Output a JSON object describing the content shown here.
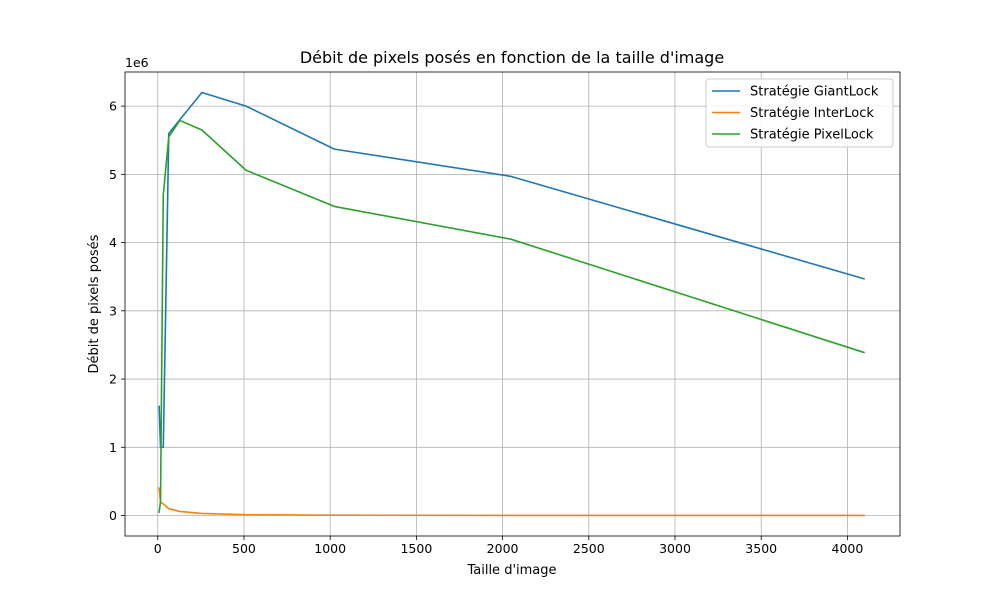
{
  "chart_data": {
    "type": "line",
    "title": "Débit de pixels posés en fonction de la taille d'image",
    "xlabel": "Taille d'image",
    "ylabel": "Débit de pixels posés",
    "y_offset_label": "1e6",
    "xlim": [
      -190,
      4305
    ],
    "ylim": [
      -300000,
      6500000
    ],
    "xticks": [
      0,
      500,
      1000,
      1500,
      2000,
      2500,
      3000,
      3500,
      4000
    ],
    "xtick_labels": [
      "0",
      "500",
      "1000",
      "1500",
      "2000",
      "2500",
      "3000",
      "3500",
      "4000"
    ],
    "yticks": [
      0,
      1000000,
      2000000,
      3000000,
      4000000,
      5000000,
      6000000
    ],
    "ytick_labels": [
      "0",
      "1",
      "2",
      "3",
      "4",
      "5",
      "6"
    ],
    "grid": true,
    "legend_position": "top-right",
    "series": [
      {
        "name": "Stratégie GiantLock",
        "color": "#1f77b4",
        "x": [
          8,
          16,
          32,
          64,
          128,
          256,
          512,
          1024,
          2048,
          4096
        ],
        "y": [
          1600000,
          1000000,
          1000000,
          5600000,
          5800000,
          6200000,
          6000000,
          5370000,
          4970000,
          3470000
        ]
      },
      {
        "name": "Stratégie InterLock",
        "color": "#ff7f0e",
        "x": [
          8,
          16,
          32,
          64,
          128,
          256,
          512,
          1024,
          2048,
          4096
        ],
        "y": [
          400000,
          200000,
          170000,
          100000,
          60000,
          30000,
          12000,
          5000,
          2000,
          1000
        ]
      },
      {
        "name": "Stratégie PixelLock",
        "color": "#2ca02c",
        "x": [
          8,
          16,
          32,
          64,
          128,
          256,
          512,
          1024,
          2048,
          4096
        ],
        "y": [
          50000,
          200000,
          4700000,
          5550000,
          5790000,
          5650000,
          5060000,
          4530000,
          4050000,
          2390000
        ]
      }
    ]
  }
}
